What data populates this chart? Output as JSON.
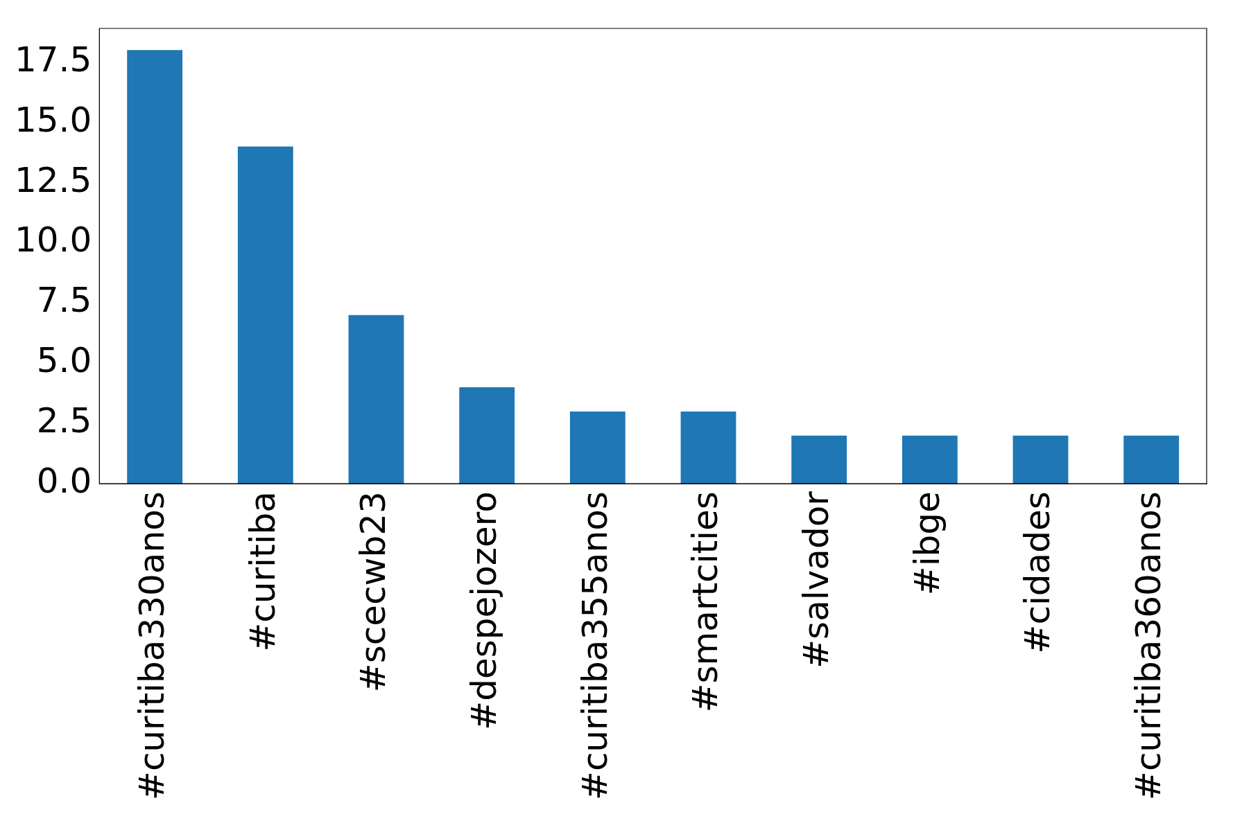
{
  "chart_data": {
    "type": "bar",
    "categories": [
      "#curitiba330anos",
      "#curitiba",
      "#scecwb23",
      "#despejozero",
      "#curitiba355anos",
      "#smartcities",
      "#salvador",
      "#ibge",
      "#cidades",
      "#curitiba360anos"
    ],
    "values": [
      18,
      14,
      7,
      4,
      3,
      3,
      2,
      2,
      2,
      2
    ],
    "color": "#1f77b4",
    "ylim": [
      0,
      18.9
    ],
    "yticks": [
      {
        "value": 0,
        "label": "0.0"
      },
      {
        "value": 2.5,
        "label": "2.5"
      },
      {
        "value": 5,
        "label": "5.0"
      },
      {
        "value": 7.5,
        "label": "7.5"
      },
      {
        "value": 10,
        "label": "10.0"
      },
      {
        "value": 12.5,
        "label": "12.5"
      },
      {
        "value": 15,
        "label": "15.0"
      },
      {
        "value": 17.5,
        "label": "17.5"
      }
    ],
    "grid": false,
    "legend": false
  }
}
